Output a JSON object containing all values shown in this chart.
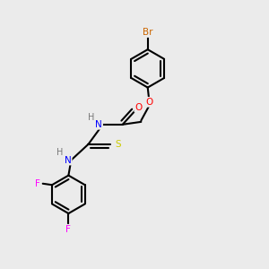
{
  "background_color": "#ebebeb",
  "atom_colors": {
    "C": "#000000",
    "H": "#777777",
    "N": "#0000ff",
    "O": "#ff0000",
    "S": "#cccc00",
    "F": "#ff00ff",
    "Br": "#cc6600"
  },
  "bond_color": "#000000",
  "bond_width": 1.5
}
